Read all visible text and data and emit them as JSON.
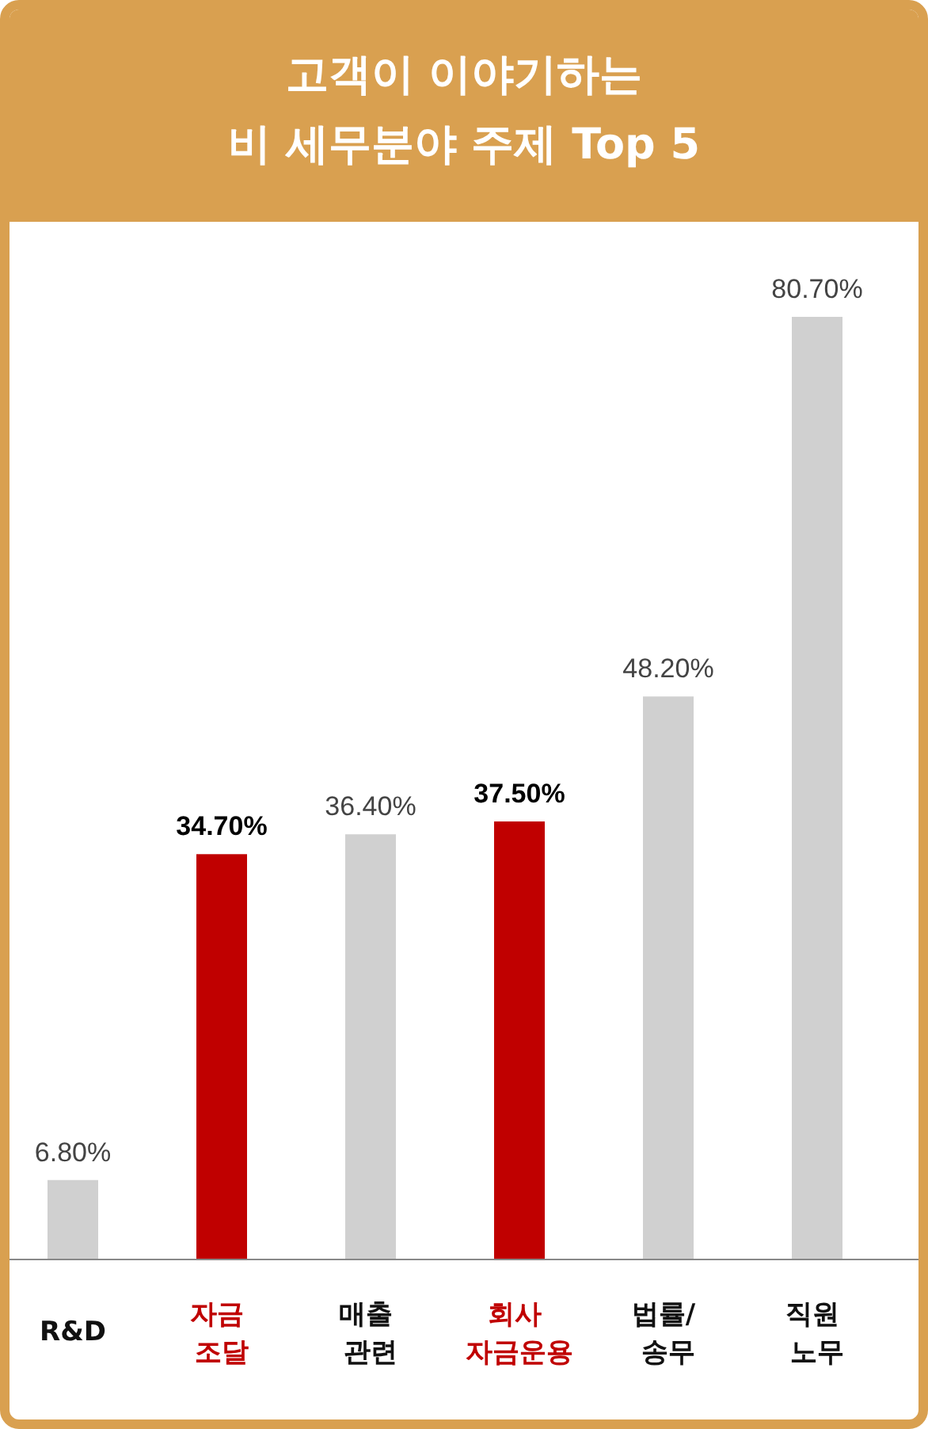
{
  "chart_data": {
    "type": "bar",
    "title": "고객이 이야기하는\n비 세무분야 주제 Top 5",
    "categories": [
      "R&D",
      "자금 조달",
      "매출 관련",
      "회사 자금운용",
      "법률/ 송무",
      "직원 노무"
    ],
    "values": [
      6.8,
      34.7,
      36.4,
      37.5,
      48.2,
      80.7
    ],
    "value_labels": [
      "6.80%",
      "34.70%",
      "36.40%",
      "37.50%",
      "48.20%",
      "80.70%"
    ],
    "colors": [
      "#d0d0d0",
      "#c00000",
      "#d0d0d0",
      "#c00000",
      "#d0d0d0",
      "#d0d0d0"
    ]
  }
}
